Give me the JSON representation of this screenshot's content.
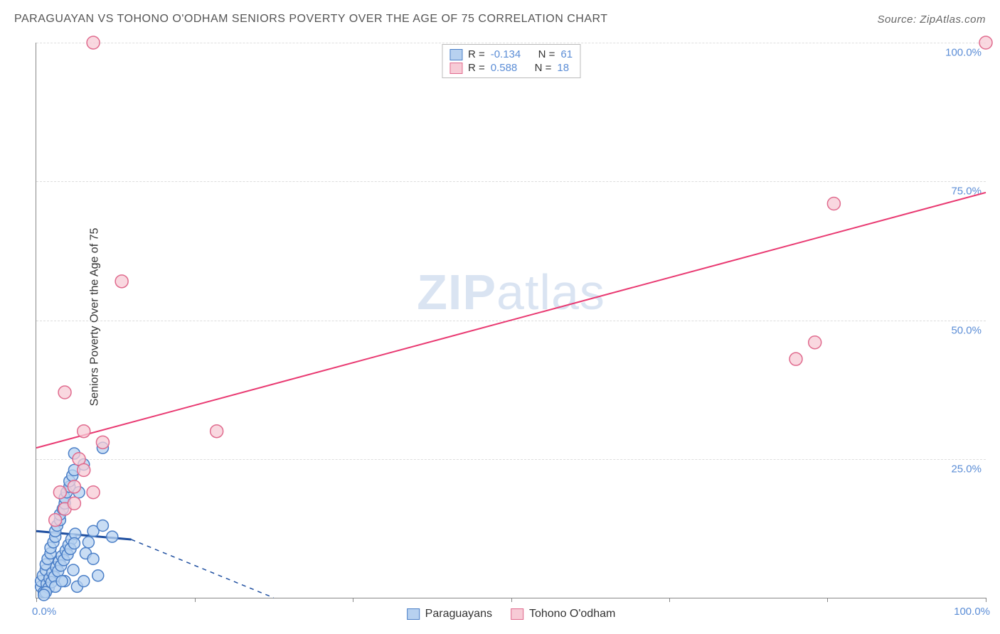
{
  "title": "PARAGUAYAN VS TOHONO O'ODHAM SENIORS POVERTY OVER THE AGE OF 75 CORRELATION CHART",
  "source": "Source: ZipAtlas.com",
  "y_axis_label": "Seniors Poverty Over the Age of 75",
  "watermark_bold": "ZIP",
  "watermark_light": "atlas",
  "chart": {
    "type": "scatter",
    "xlim": [
      0,
      100
    ],
    "ylim": [
      0,
      100
    ],
    "x_ticks": [
      0,
      16.67,
      33.33,
      50,
      66.67,
      83.33,
      100
    ],
    "x_tick_labels_shown": {
      "0": "0.0%",
      "100": "100.0%"
    },
    "y_ticks": [
      25,
      50,
      75,
      100
    ],
    "y_tick_labels": [
      "25.0%",
      "50.0%",
      "75.0%",
      "100.0%"
    ],
    "grid_color": "#dddddd",
    "background_color": "#ffffff",
    "axis_color": "#888888",
    "tick_label_color": "#5b8dd6",
    "series": [
      {
        "name": "Paraguayans",
        "marker_fill": "#b7d1f0",
        "marker_stroke": "#4b7fc7",
        "marker_radius": 8,
        "line_color": "#1f4fa0",
        "line_width": 3,
        "line_extent_solid": [
          0,
          10
        ],
        "line_y_solid": [
          12,
          10.5
        ],
        "line_dash_extent": [
          10,
          25
        ],
        "line_dash_y": [
          10.5,
          0
        ],
        "R": "-0.134",
        "N": "61",
        "points": [
          [
            0.5,
            2
          ],
          [
            0.5,
            3
          ],
          [
            0.7,
            4
          ],
          [
            1,
            5
          ],
          [
            1,
            6
          ],
          [
            1.2,
            7
          ],
          [
            1.5,
            8
          ],
          [
            1.5,
            9
          ],
          [
            1.8,
            10
          ],
          [
            2,
            11
          ],
          [
            2,
            12
          ],
          [
            2.2,
            13
          ],
          [
            2.5,
            14
          ],
          [
            2.5,
            15
          ],
          [
            2.8,
            16
          ],
          [
            3,
            17
          ],
          [
            3,
            18
          ],
          [
            3.2,
            19
          ],
          [
            3.5,
            20
          ],
          [
            3.5,
            21
          ],
          [
            3.8,
            22
          ],
          [
            4,
            23
          ],
          [
            0.8,
            1
          ],
          [
            1.1,
            2.5
          ],
          [
            1.4,
            3.5
          ],
          [
            1.7,
            4.5
          ],
          [
            2.1,
            5.5
          ],
          [
            2.4,
            6.5
          ],
          [
            2.7,
            7.5
          ],
          [
            3.1,
            8.5
          ],
          [
            3.4,
            9.5
          ],
          [
            3.7,
            10.5
          ],
          [
            4.1,
            11.5
          ],
          [
            1.3,
            1.8
          ],
          [
            1.6,
            2.8
          ],
          [
            1.9,
            3.8
          ],
          [
            2.3,
            4.8
          ],
          [
            2.6,
            5.8
          ],
          [
            2.9,
            6.8
          ],
          [
            3.3,
            7.8
          ],
          [
            3.6,
            8.8
          ],
          [
            4,
            9.8
          ],
          [
            4.3,
            2
          ],
          [
            5,
            3
          ],
          [
            5.5,
            10
          ],
          [
            6,
            12
          ],
          [
            7,
            13
          ],
          [
            4.5,
            19
          ],
          [
            5.2,
            8
          ],
          [
            6.5,
            4
          ],
          [
            3,
            3
          ],
          [
            2,
            2
          ],
          [
            1,
            1
          ],
          [
            0.8,
            0.5
          ],
          [
            4,
            26
          ],
          [
            7,
            27
          ],
          [
            5,
            24
          ],
          [
            8,
            11
          ],
          [
            6,
            7
          ],
          [
            3.9,
            5
          ],
          [
            2.7,
            3
          ]
        ]
      },
      {
        "name": "Tohono O'odham",
        "marker_fill": "#f7cbd6",
        "marker_stroke": "#e06b8e",
        "marker_radius": 9,
        "line_color": "#e93a72",
        "line_width": 2,
        "line_extent_solid": [
          0,
          100
        ],
        "line_y_solid": [
          27,
          73
        ],
        "R": "0.588",
        "N": "18",
        "points": [
          [
            2,
            14
          ],
          [
            2.5,
            19
          ],
          [
            3,
            16
          ],
          [
            4,
            20
          ],
          [
            4.5,
            25
          ],
          [
            5,
            30
          ],
          [
            6,
            19
          ],
          [
            7,
            28
          ],
          [
            3,
            37
          ],
          [
            6,
            100
          ],
          [
            9,
            57
          ],
          [
            19,
            30
          ],
          [
            80,
            43
          ],
          [
            82,
            46
          ],
          [
            84,
            71
          ],
          [
            100,
            100
          ],
          [
            5,
            23
          ],
          [
            4,
            17
          ]
        ]
      }
    ]
  },
  "legend_labels": {
    "R_label": "R =",
    "N_label": "N ="
  }
}
